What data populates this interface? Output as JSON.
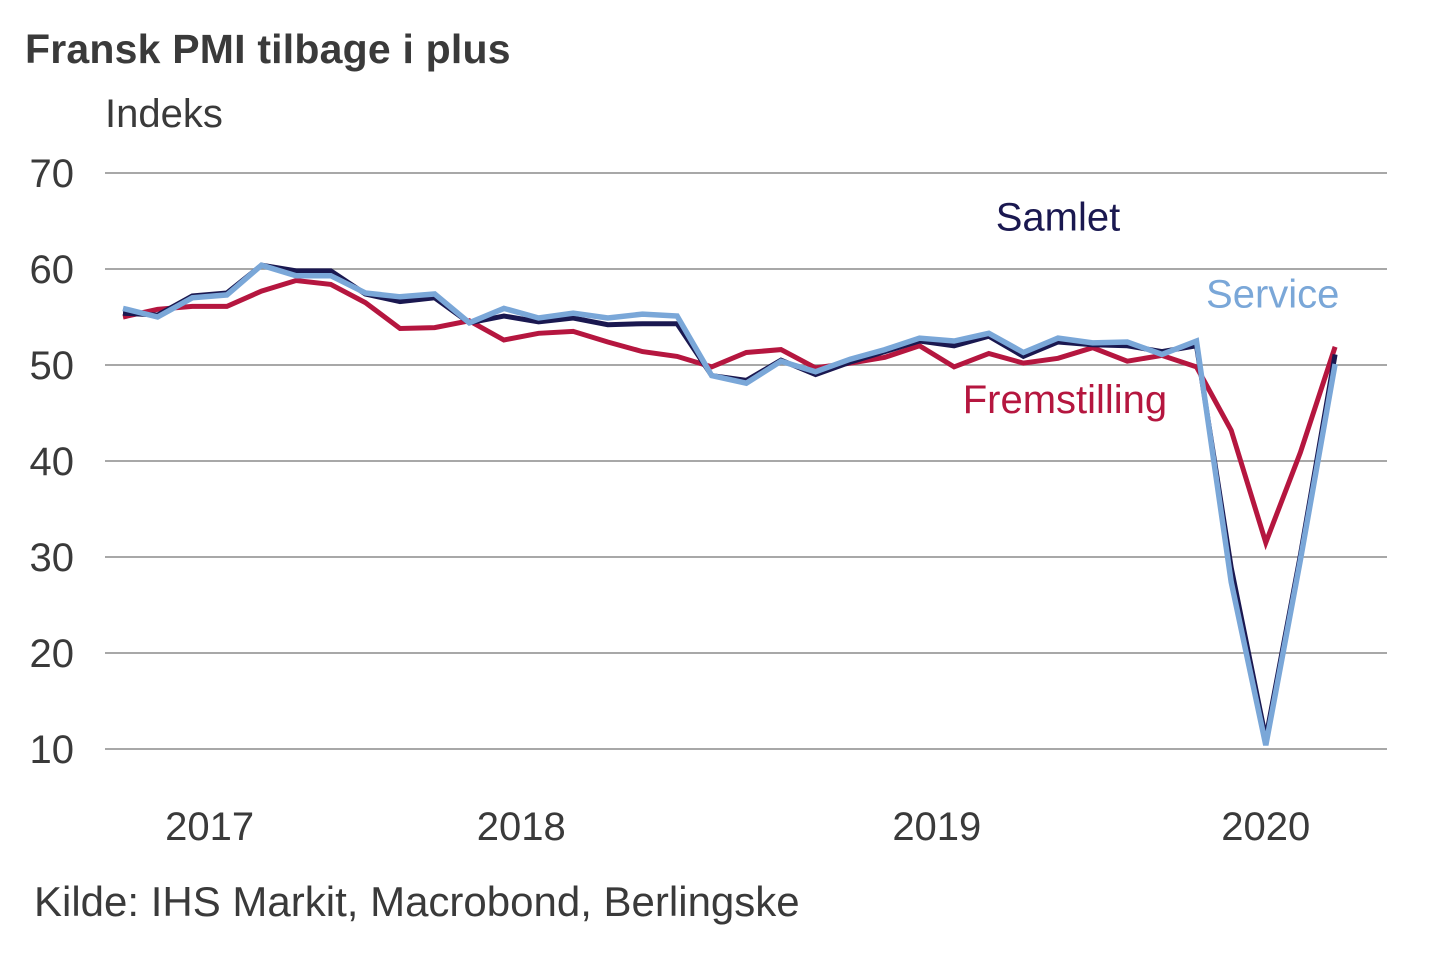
{
  "chart_data": {
    "type": "line",
    "title": "Fransk PMI tilbage i plus",
    "ylabel": "Indeks",
    "xlabel": "",
    "source": "Kilde: IHS Markit, Macrobond, Berlingske",
    "ylim": [
      10,
      70
    ],
    "yticks": [
      70,
      60,
      50,
      40,
      30,
      20,
      10
    ],
    "grid": true,
    "x_count": 36,
    "xticks": [
      {
        "label": "2017",
        "at": 2.5
      },
      {
        "label": "2018",
        "at": 11.5
      },
      {
        "label": "2019",
        "at": 23.5
      },
      {
        "label": "2020",
        "at": 33
      }
    ],
    "series": [
      {
        "name": "Fremstilling",
        "color": "#b5163f",
        "values": [
          55.0,
          55.8,
          56.1,
          56.1,
          57.7,
          58.8,
          58.4,
          56.5,
          53.8,
          53.9,
          54.6,
          52.6,
          53.3,
          53.5,
          52.4,
          51.4,
          50.9,
          49.8,
          51.3,
          51.6,
          49.7,
          50.2,
          50.8,
          52.0,
          49.8,
          51.2,
          50.2,
          50.7,
          51.8,
          50.4,
          51.0,
          49.8,
          43.2,
          31.5,
          40.9,
          51.9
        ]
      },
      {
        "name": "Samlet",
        "color": "#1a1850",
        "values": [
          55.4,
          55.2,
          57.2,
          57.5,
          60.4,
          59.8,
          59.8,
          57.4,
          56.6,
          57.0,
          54.4,
          55.1,
          54.5,
          54.9,
          54.2,
          54.3,
          54.3,
          48.9,
          48.4,
          50.5,
          49.0,
          50.3,
          51.4,
          52.5,
          52.0,
          53.0,
          50.9,
          52.4,
          52.1,
          52.0,
          51.4,
          52.0,
          28.9,
          11.1,
          30.2,
          51.1
        ]
      },
      {
        "name": "Service",
        "color": "#7aa7d8",
        "values": [
          55.9,
          55.0,
          57.0,
          57.3,
          60.4,
          59.3,
          59.3,
          57.5,
          57.1,
          57.4,
          54.4,
          55.9,
          54.9,
          55.4,
          54.9,
          55.3,
          55.1,
          48.9,
          48.1,
          50.4,
          49.3,
          50.6,
          51.6,
          52.8,
          52.5,
          53.3,
          51.3,
          52.8,
          52.3,
          52.4,
          51.1,
          52.5,
          27.4,
          10.4,
          29.7,
          50.1
        ]
      }
    ],
    "annotations": [
      {
        "text": "Samlet",
        "series": "Samlet",
        "x": 27.0,
        "y": 64
      },
      {
        "text": "Service",
        "series": "Service",
        "x": 33.2,
        "y": 56
      },
      {
        "text": "Fremstilling",
        "series": "Fremstilling",
        "x": 27.2,
        "y": 45
      }
    ]
  }
}
